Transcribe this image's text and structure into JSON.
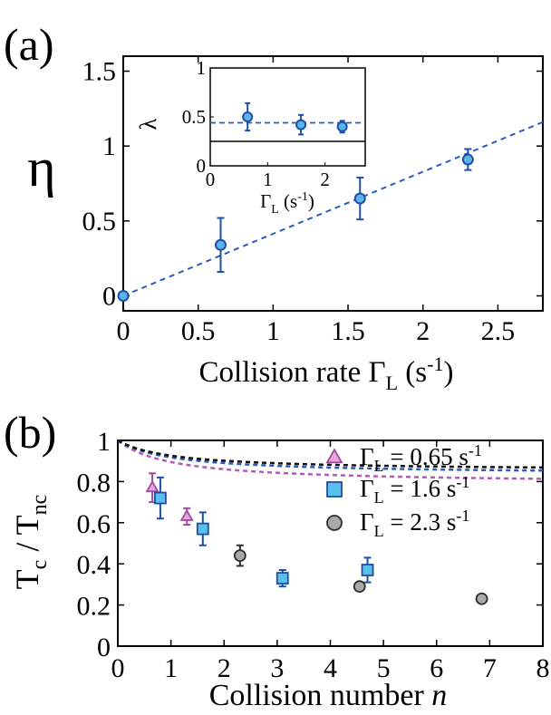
{
  "figure": {
    "panel_a_label": "(a)",
    "panel_b_label": "(b)"
  },
  "chart_data": [
    {
      "type": "scatter",
      "panel": "(a)",
      "ylabel": "η",
      "xlabel_parts": {
        "main": "Collision rate Γ",
        "sub": "L",
        "unit_pre": " (s",
        "unit_sup": "-1",
        "unit_post": ")"
      },
      "xlim": [
        0,
        2.8
      ],
      "ylim": [
        -0.1,
        1.6
      ],
      "x_ticks": [
        0,
        0.5,
        1,
        1.5,
        2,
        2.5
      ],
      "x_tick_labels": [
        "0",
        "0.5",
        "1",
        "1.5",
        "2",
        "2.5"
      ],
      "y_ticks": [
        0,
        0.5,
        1,
        1.5
      ],
      "y_tick_labels": [
        "0",
        "0.5",
        "1",
        "1.5"
      ],
      "marker_color": "#5ab4e5",
      "edge_color": "#1f4fa8",
      "fit_color": "#2a5bb8",
      "series": [
        {
          "points": [
            {
              "x": 0.0,
              "y": 0.0,
              "err": 0.0
            },
            {
              "x": 0.65,
              "y": 0.34,
              "err": 0.18
            },
            {
              "x": 1.58,
              "y": 0.65,
              "err": 0.14
            },
            {
              "x": 2.3,
              "y": 0.91,
              "err": 0.07
            }
          ]
        }
      ],
      "fit_line": {
        "x": [
          0,
          2.8
        ],
        "y": [
          0,
          1.16
        ]
      },
      "inset": {
        "ylabel": "λ",
        "xlabel_parts": {
          "main": "Γ",
          "sub": "L",
          "unit_pre": " (s",
          "unit_sup": "-1",
          "unit_post": ")"
        },
        "xlim": [
          0,
          2.7
        ],
        "ylim": [
          0,
          1
        ],
        "x_ticks": [
          0,
          1,
          2
        ],
        "x_tick_labels": [
          "0",
          "1",
          "2"
        ],
        "y_ticks": [
          0,
          0.5,
          1
        ],
        "y_tick_labels": [
          "0",
          "0.5",
          "1"
        ],
        "points": [
          {
            "x": 0.65,
            "y": 0.5,
            "err": 0.14
          },
          {
            "x": 1.58,
            "y": 0.42,
            "err": 0.1
          },
          {
            "x": 2.3,
            "y": 0.4,
            "err": 0.06
          }
        ],
        "dashed_level": 0.44,
        "solid_level": 0.25
      }
    },
    {
      "type": "scatter",
      "panel": "(b)",
      "ylabel_parts": {
        "a": "T",
        "a_sub": "c",
        "sep": " / T",
        "b_sub": "nc"
      },
      "xlabel_parts": {
        "main": "Collision number ",
        "var": "n"
      },
      "xlim": [
        0,
        8
      ],
      "ylim": [
        0,
        1
      ],
      "x_ticks": [
        0,
        1,
        2,
        3,
        4,
        5,
        6,
        7,
        8
      ],
      "x_tick_labels": [
        "0",
        "1",
        "2",
        "3",
        "4",
        "5",
        "6",
        "7",
        "8"
      ],
      "y_ticks": [
        0,
        0.2,
        0.4,
        0.6,
        0.8,
        1
      ],
      "y_tick_labels": [
        "0",
        "0.2",
        "0.4",
        "0.6",
        "0.8",
        "1"
      ],
      "legend_position": "top-right",
      "series": [
        {
          "name_parts": {
            "main": "Γ",
            "sub": "L",
            "mid": " = 0.65 s",
            "sup": "-1"
          },
          "marker": "triangle",
          "fill": "#e8a6dd",
          "edge": "#a04a9a",
          "fit_color": "#b55ab5",
          "fit_A": 0.79,
          "points": [
            {
              "x": 0.65,
              "y": 0.77,
              "err": 0.07
            },
            {
              "x": 1.3,
              "y": 0.63,
              "err": 0.04
            }
          ]
        },
        {
          "name_parts": {
            "main": "Γ",
            "sub": "L",
            "mid": " = 1.6 s",
            "sup": "-1"
          },
          "marker": "square",
          "fill": "#58c0ea",
          "edge": "#1c4ea6",
          "fit_color": "#2a5bb8",
          "fit_A": 0.835,
          "points": [
            {
              "x": 0.8,
              "y": 0.72,
              "err": 0.1
            },
            {
              "x": 1.6,
              "y": 0.57,
              "err": 0.08
            },
            {
              "x": 3.1,
              "y": 0.33,
              "err": 0.04
            },
            {
              "x": 4.7,
              "y": 0.37,
              "err": 0.06
            }
          ]
        },
        {
          "name_parts": {
            "main": "Γ",
            "sub": "L",
            "mid": " = 2.3 s",
            "sup": "-1"
          },
          "marker": "circle",
          "fill": "#a9a9a9",
          "edge": "#2f2f2f",
          "fit_color": "#111111",
          "fit_A": 0.852,
          "points": [
            {
              "x": 2.3,
              "y": 0.44,
              "err": 0.05
            },
            {
              "x": 4.55,
              "y": 0.29,
              "err": 0.02
            },
            {
              "x": 6.85,
              "y": 0.23,
              "err": 0.02
            }
          ]
        }
      ]
    }
  ]
}
